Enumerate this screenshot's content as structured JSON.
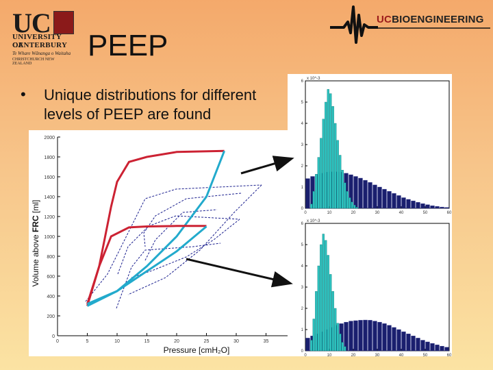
{
  "header": {
    "logo_letters": "UC",
    "university_line1": "UNIVERSITY OF",
    "university_line2": "CANTERBURY",
    "university_line3": "Te Whare Wānanga o Waitaha",
    "university_line4": "CHRISTCHURCH NEW ZEALAND",
    "bioeng_uc": "UC",
    "bioeng_word": "BIOENGINEERING",
    "title": "PEEP"
  },
  "bullet": {
    "marker": "•",
    "text": "Unique distributions for different levels of PEEP are found"
  },
  "left_chart": {
    "ylabel_part1": "Volume above ",
    "ylabel_part2": "FRC",
    "ylabel_part3": " [ml]",
    "xlabel": "Pressure [cmH₂O]",
    "y_ticks": [
      "2000",
      "1800",
      "1600",
      "1400",
      "1200",
      "1000",
      "800",
      "600",
      "400",
      "200",
      "0"
    ],
    "x_ticks": [
      "0",
      "5",
      "10",
      "15",
      "20",
      "25",
      "30",
      "35",
      "40"
    ]
  },
  "chart_data": [
    {
      "type": "line",
      "xlabel": "Pressure [cmH2O]",
      "ylabel": "Volume above FRC [ml]",
      "xlim": [
        0,
        40
      ],
      "ylim": [
        0,
        2000
      ],
      "series": [
        {
          "color": "#cc2233",
          "x": [
            5,
            7,
            9,
            10,
            12,
            15,
            20,
            28
          ],
          "y": [
            300,
            700,
            1300,
            1550,
            1750,
            1800,
            1850,
            1860
          ]
        },
        {
          "color": "#22aacc",
          "x": [
            5,
            10,
            15,
            20,
            25,
            28
          ],
          "y": [
            300,
            450,
            700,
            1000,
            1400,
            1860
          ]
        },
        {
          "color": "#cc2233",
          "x": [
            5,
            7,
            9,
            12,
            15,
            20,
            25
          ],
          "y": [
            320,
            700,
            1000,
            1090,
            1100,
            1105,
            1105
          ]
        },
        {
          "color": "#22aacc",
          "x": [
            5,
            10,
            15,
            20,
            25
          ],
          "y": [
            320,
            450,
            650,
            850,
            1100
          ]
        }
      ]
    },
    {
      "type": "bar",
      "xlim": [
        0,
        60
      ],
      "ylim": [
        0,
        6
      ],
      "y_multiplier": "x 10^-3",
      "x_ticks": [
        "0",
        "10",
        "20",
        "30",
        "40",
        "50",
        "60"
      ],
      "y_ticks": [
        "0",
        "1",
        "2",
        "3",
        "4",
        "5",
        "6"
      ],
      "series": [
        {
          "color": "#2cc3c0",
          "x": [
            2.5,
            3.5,
            4.5,
            5.5,
            6.5,
            7.5,
            8.5,
            9.5,
            10.5,
            11.5,
            12.5,
            13.5,
            14.5,
            15.5,
            16.5,
            17.5,
            18.5,
            19.5,
            20.5,
            21.5
          ],
          "y": [
            0.2,
            0.8,
            1.6,
            2.4,
            3.3,
            4.2,
            5.0,
            5.6,
            5.4,
            4.8,
            4.0,
            3.2,
            2.5,
            1.8,
            1.2,
            0.8,
            0.5,
            0.3,
            0.15,
            0.05
          ]
        },
        {
          "color": "#1a1f6e",
          "x": [
            1,
            3,
            5,
            7,
            9,
            11,
            13,
            15,
            17,
            19,
            21,
            23,
            25,
            27,
            29,
            31,
            33,
            35,
            37,
            39,
            41,
            43,
            45,
            47,
            49,
            51,
            53,
            55,
            57,
            59
          ],
          "y": [
            1.4,
            1.5,
            1.6,
            1.65,
            1.7,
            1.72,
            1.72,
            1.7,
            1.65,
            1.58,
            1.5,
            1.42,
            1.32,
            1.22,
            1.1,
            1.0,
            0.9,
            0.8,
            0.7,
            0.6,
            0.5,
            0.42,
            0.35,
            0.28,
            0.22,
            0.17,
            0.12,
            0.09,
            0.06,
            0.04
          ]
        }
      ]
    },
    {
      "type": "bar",
      "xlim": [
        0,
        60
      ],
      "ylim": [
        0,
        6
      ],
      "y_multiplier": "x 10^-3",
      "x_ticks": [
        "0",
        "10",
        "20",
        "30",
        "40",
        "50",
        "60"
      ],
      "y_ticks": [
        "0",
        "1",
        "2",
        "3",
        "4",
        "5",
        "6"
      ],
      "series": [
        {
          "color": "#2cc3c0",
          "x": [
            2.5,
            3.5,
            4.5,
            5.5,
            6.5,
            7.5,
            8.5,
            9.5,
            10.5,
            11.5,
            12.5,
            13.5,
            14.5,
            15.5,
            16.5
          ],
          "y": [
            0.5,
            1.5,
            2.8,
            4.0,
            5.0,
            5.5,
            5.2,
            4.5,
            3.6,
            2.8,
            2.0,
            1.3,
            0.8,
            0.4,
            0.2
          ]
        },
        {
          "color": "#1a1f6e",
          "x": [
            1,
            3,
            5,
            7,
            9,
            11,
            13,
            15,
            17,
            19,
            21,
            23,
            25,
            27,
            29,
            31,
            33,
            35,
            37,
            39,
            41,
            43,
            45,
            47,
            49,
            51,
            53,
            55,
            57,
            59
          ],
          "y": [
            0.6,
            0.7,
            0.8,
            0.9,
            1.0,
            1.1,
            1.2,
            1.28,
            1.35,
            1.4,
            1.42,
            1.44,
            1.45,
            1.44,
            1.4,
            1.35,
            1.28,
            1.2,
            1.1,
            1.0,
            0.9,
            0.8,
            0.7,
            0.6,
            0.5,
            0.42,
            0.35,
            0.28,
            0.22,
            0.17
          ]
        }
      ]
    }
  ],
  "colors": {
    "accent_red": "#cc2233",
    "accent_cyan": "#22aacc",
    "dashed_blue": "#1a1f8e",
    "bar_teal": "#2cc3c0",
    "bar_navy": "#1a1f6e"
  }
}
